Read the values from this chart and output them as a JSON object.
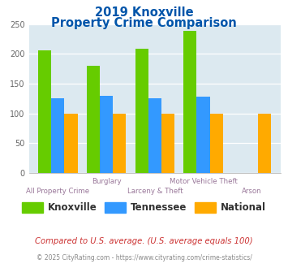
{
  "title_line1": "2019 Knoxville",
  "title_line2": "Property Crime Comparison",
  "knoxville": [
    206,
    180,
    208,
    238,
    0
  ],
  "tennessee": [
    125,
    129,
    125,
    128,
    0
  ],
  "national": [
    100,
    100,
    100,
    100,
    100
  ],
  "color_knoxville": "#66cc00",
  "color_tennessee": "#3399ff",
  "color_national": "#ffaa00",
  "ylim": [
    0,
    250
  ],
  "yticks": [
    0,
    50,
    100,
    150,
    200,
    250
  ],
  "background_color": "#dce9f0",
  "title_color": "#0055aa",
  "label_color": "#997799",
  "legend_text_color": "#333333",
  "footnote_color": "#cc3333",
  "footnote2_color": "#888888",
  "footnote": "Compared to U.S. average. (U.S. average equals 100)",
  "footnote2": "© 2025 CityRating.com - https://www.cityrating.com/crime-statistics/",
  "xlabel_row1": [
    "All Property Crime",
    "Burglary",
    "Larceny & Theft",
    "Motor Vehicle Theft",
    "Arson"
  ],
  "xlabel_stagger": [
    1,
    0,
    1,
    0,
    1
  ],
  "n_groups": 5
}
